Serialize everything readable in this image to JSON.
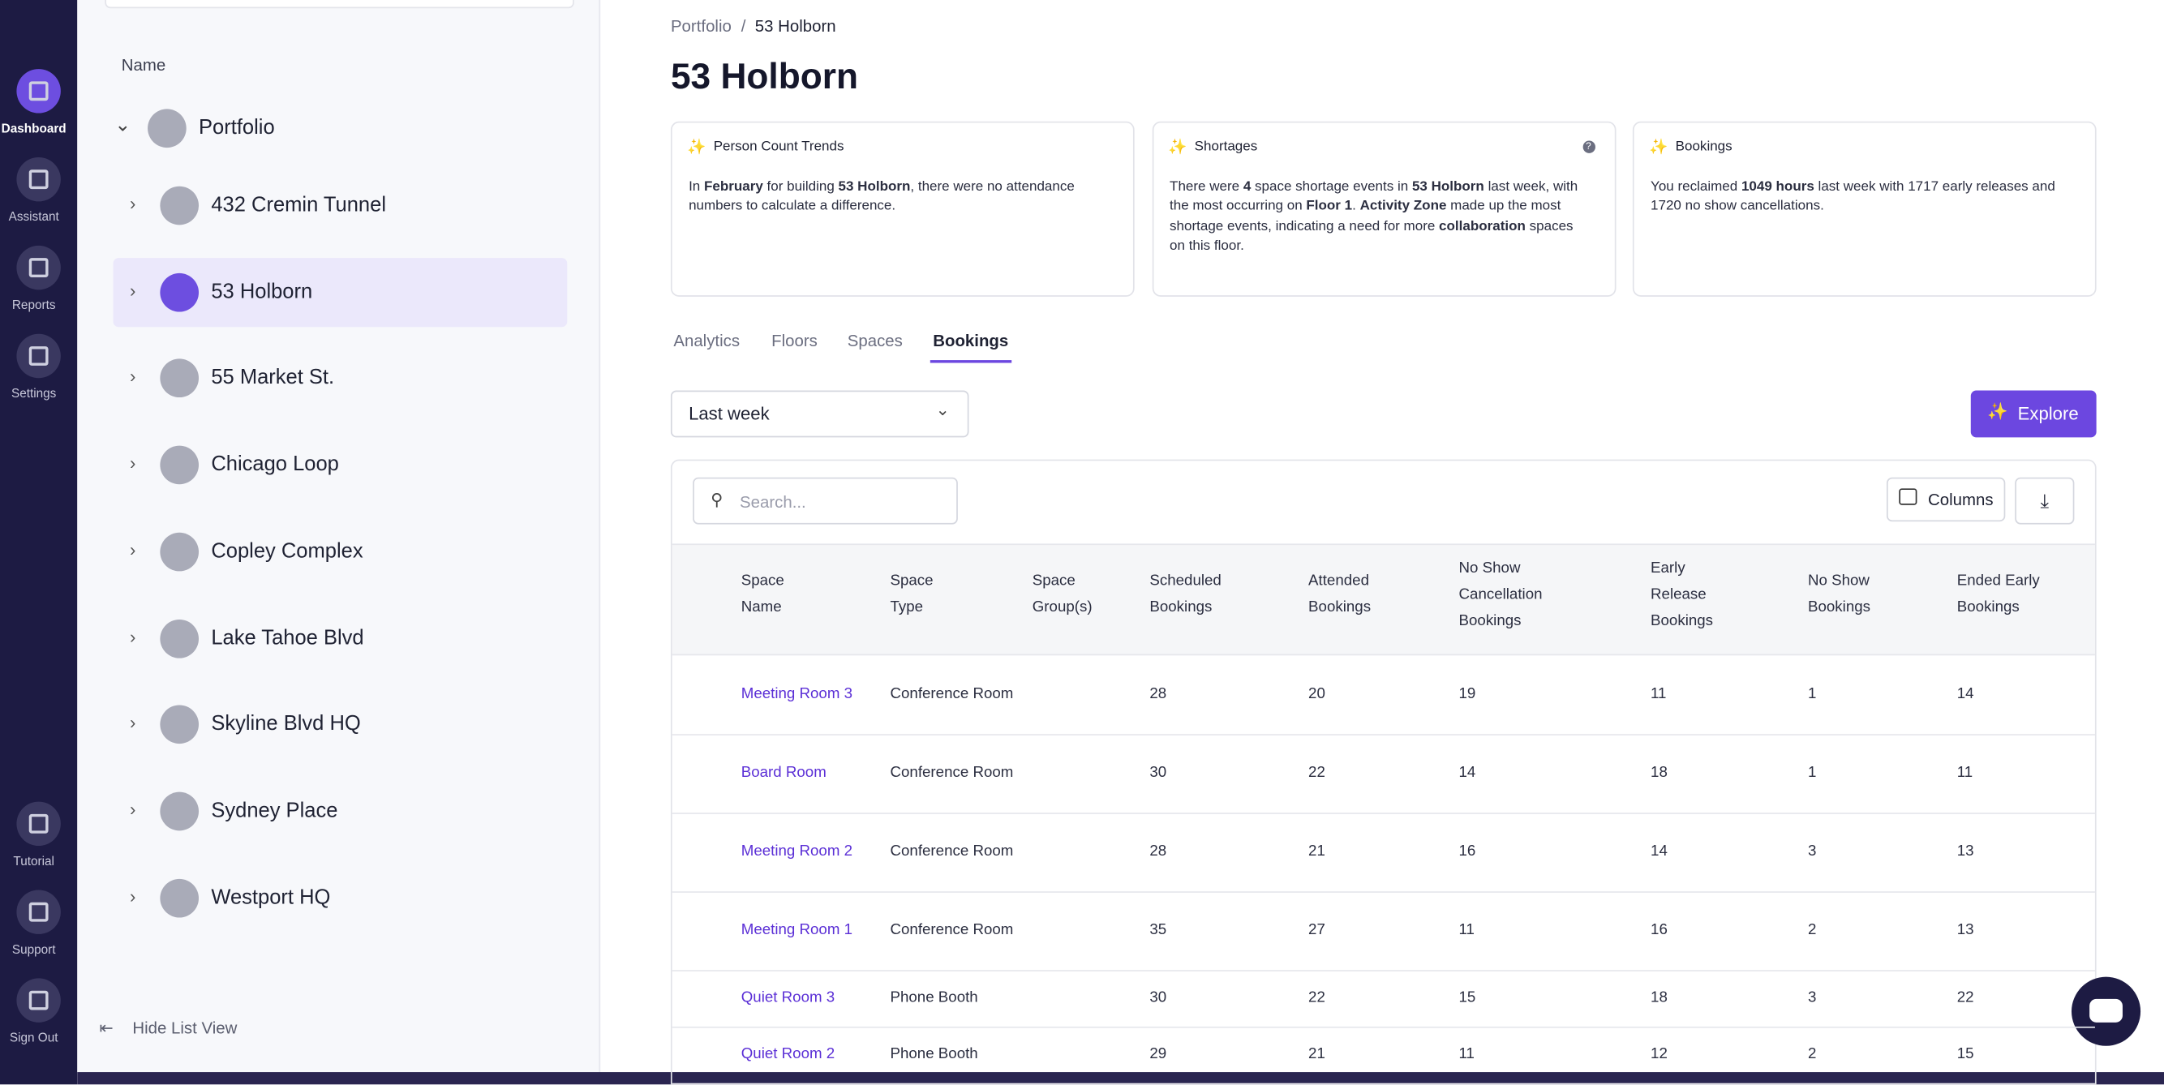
{
  "nav": {
    "top": [
      "Dashboard",
      "Assistant",
      "Reports",
      "Settings"
    ],
    "bottom": [
      "Tutorial",
      "Support",
      "Sign Out"
    ],
    "active": 0
  },
  "tree": {
    "column": "Name",
    "root": "Portfolio",
    "items": [
      "432 Cremin Tunnel",
      "53 Holborn",
      "55 Market St.",
      "Chicago Loop",
      "Copley Complex",
      "Lake Tahoe Blvd",
      "Skyline Blvd HQ",
      "Sydney Place",
      "Westport HQ"
    ],
    "selected": 1,
    "hide": "Hide List View"
  },
  "breadcrumb": [
    "Portfolio",
    "/",
    "53 Holborn"
  ],
  "title": "53 Holborn",
  "cards": [
    {
      "title": "Person Count Trends",
      "body": [
        {
          "text": "In "
        },
        {
          "text": "February",
          "bold": true
        },
        {
          "text": " for building "
        },
        {
          "text": "53 Holborn",
          "bold": true
        },
        {
          "text": ", there were no attendance numbers to calculate a difference."
        }
      ]
    },
    {
      "title": "Shortages",
      "help": "?",
      "body": [
        {
          "text": "There were "
        },
        {
          "text": "4",
          "bold": true
        },
        {
          "text": " space shortage events in "
        },
        {
          "text": "53 Holborn",
          "bold": true
        },
        {
          "text": " last week, with the most occurring on "
        },
        {
          "text": "Floor 1",
          "bold": true
        },
        {
          "text": ". "
        },
        {
          "text": "Activity Zone",
          "bold": true
        },
        {
          "text": " made up the most shortage events, indicating a need for more "
        },
        {
          "text": "collaboration",
          "bold": true
        },
        {
          "text": " spaces on this floor."
        }
      ]
    },
    {
      "title": "Bookings",
      "body": [
        {
          "text": "You reclaimed "
        },
        {
          "text": "1049 hours",
          "bold": true
        },
        {
          "text": " last week with 1717 early releases and 1720 no show cancellations."
        }
      ]
    }
  ],
  "tabs": [
    "Analytics",
    "Floors",
    "Spaces",
    "Bookings"
  ],
  "active_tab": 3,
  "range": "Last week",
  "explore": "Explore",
  "search": "Search...",
  "columns_button": "Columns",
  "table": {
    "headers": [
      [
        "Space",
        "Name"
      ],
      [
        "Space",
        "Type"
      ],
      [
        "Space",
        "Group(s)"
      ],
      [
        "Scheduled",
        "Bookings"
      ],
      [
        "Attended",
        "Bookings"
      ],
      [
        "No Show",
        "Cancellation",
        "Bookings"
      ],
      [
        "Early",
        "Release",
        "Bookings"
      ],
      [
        "No Show",
        "Bookings"
      ],
      [
        "Ended Early",
        "Bookings"
      ]
    ],
    "rows": [
      [
        "Meeting Room 3",
        "Conference Room",
        "",
        28,
        20,
        19,
        11,
        1,
        14
      ],
      [
        "Board Room",
        "Conference Room",
        "",
        30,
        22,
        14,
        18,
        1,
        11
      ],
      [
        "Meeting Room 2",
        "Conference Room",
        "",
        28,
        21,
        16,
        14,
        3,
        13
      ],
      [
        "Meeting Room 1",
        "Conference Room",
        "",
        35,
        27,
        11,
        16,
        2,
        13
      ],
      [
        "Quiet Room 3",
        "Phone Booth",
        "",
        30,
        22,
        15,
        18,
        3,
        22
      ],
      [
        "Quiet Room 2",
        "Phone Booth",
        "",
        29,
        21,
        11,
        12,
        2,
        15
      ]
    ]
  }
}
